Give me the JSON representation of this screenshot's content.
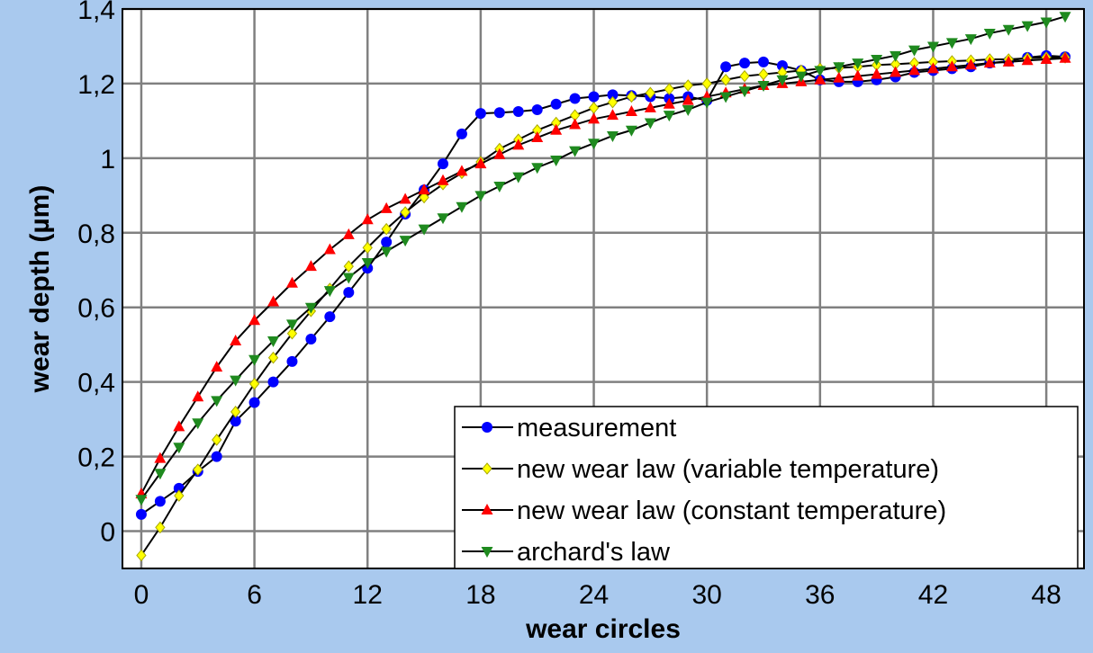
{
  "chart_data": {
    "type": "line",
    "title": "",
    "xlabel": "wear circles",
    "ylabel": "wear depth (µm)",
    "xlim": [
      -1,
      50
    ],
    "ylim": [
      -0.1,
      1.4
    ],
    "xticks": [
      0,
      6,
      12,
      18,
      24,
      30,
      36,
      42,
      48
    ],
    "xtick_labels": [
      "0",
      "6",
      "12",
      "18",
      "24",
      "30",
      "36",
      "42",
      "48"
    ],
    "yticks": [
      0,
      0.2,
      0.4,
      0.6,
      0.8,
      1.0,
      1.2,
      1.4
    ],
    "ytick_labels": [
      "0",
      "0,2",
      "0,4",
      "0,6",
      "0,8",
      "1",
      "1,2",
      "1,4"
    ],
    "grid": true,
    "legend_position": "bottom-right",
    "x": [
      0,
      1,
      2,
      3,
      4,
      5,
      6,
      7,
      8,
      9,
      10,
      11,
      12,
      13,
      14,
      15,
      16,
      17,
      18,
      19,
      20,
      21,
      22,
      23,
      24,
      25,
      26,
      27,
      28,
      29,
      30,
      31,
      32,
      33,
      34,
      35,
      36,
      37,
      38,
      39,
      40,
      41,
      42,
      43,
      44,
      45,
      46,
      47,
      48,
      49
    ],
    "series": [
      {
        "name": "measurement",
        "color": "#0000ff",
        "marker": "circle",
        "values": [
          0.045,
          0.08,
          0.115,
          0.16,
          0.2,
          0.295,
          0.345,
          0.4,
          0.455,
          0.515,
          0.575,
          0.64,
          0.705,
          0.775,
          0.85,
          0.915,
          0.985,
          1.065,
          1.12,
          1.122,
          1.125,
          1.13,
          1.145,
          1.16,
          1.165,
          1.17,
          1.168,
          1.165,
          1.16,
          1.165,
          1.155,
          1.245,
          1.255,
          1.258,
          1.248,
          1.235,
          1.21,
          1.205,
          1.205,
          1.21,
          1.218,
          1.23,
          1.235,
          1.24,
          1.245,
          1.255,
          1.26,
          1.27,
          1.275,
          1.272
        ]
      },
      {
        "name": "new wear law (variable temperature)",
        "color": "#ffff00",
        "marker": "diamond",
        "values": [
          -0.065,
          0.01,
          0.095,
          0.165,
          0.245,
          0.32,
          0.395,
          0.465,
          0.53,
          0.59,
          0.65,
          0.71,
          0.76,
          0.81,
          0.855,
          0.895,
          0.93,
          0.96,
          0.99,
          1.025,
          1.05,
          1.075,
          1.095,
          1.115,
          1.135,
          1.15,
          1.165,
          1.175,
          1.185,
          1.195,
          1.2,
          1.21,
          1.22,
          1.225,
          1.23,
          1.235,
          1.24,
          1.242,
          1.245,
          1.25,
          1.252,
          1.255,
          1.258,
          1.26,
          1.262,
          1.265,
          1.265,
          1.268,
          1.27,
          1.27
        ]
      },
      {
        "name": "new wear law (constant temperature)",
        "color": "#ff0000",
        "marker": "triangle-up",
        "values": [
          0.1,
          0.195,
          0.28,
          0.36,
          0.44,
          0.51,
          0.565,
          0.615,
          0.665,
          0.71,
          0.755,
          0.795,
          0.835,
          0.865,
          0.89,
          0.915,
          0.94,
          0.965,
          0.985,
          1.01,
          1.035,
          1.055,
          1.075,
          1.09,
          1.105,
          1.115,
          1.125,
          1.135,
          1.145,
          1.155,
          1.165,
          1.175,
          1.185,
          1.195,
          1.2,
          1.205,
          1.21,
          1.215,
          1.22,
          1.225,
          1.23,
          1.235,
          1.24,
          1.245,
          1.25,
          1.255,
          1.258,
          1.262,
          1.265,
          1.268
        ]
      },
      {
        "name": "archard's law",
        "color": "#1f8a1f",
        "marker": "triangle-down",
        "values": [
          0.085,
          0.155,
          0.225,
          0.29,
          0.35,
          0.405,
          0.46,
          0.51,
          0.555,
          0.6,
          0.645,
          0.68,
          0.72,
          0.75,
          0.78,
          0.81,
          0.84,
          0.87,
          0.9,
          0.925,
          0.95,
          0.975,
          0.995,
          1.02,
          1.04,
          1.06,
          1.075,
          1.095,
          1.115,
          1.13,
          1.15,
          1.165,
          1.18,
          1.195,
          1.21,
          1.22,
          1.235,
          1.245,
          1.255,
          1.265,
          1.275,
          1.29,
          1.3,
          1.31,
          1.32,
          1.335,
          1.345,
          1.355,
          1.365,
          1.38
        ]
      }
    ]
  }
}
